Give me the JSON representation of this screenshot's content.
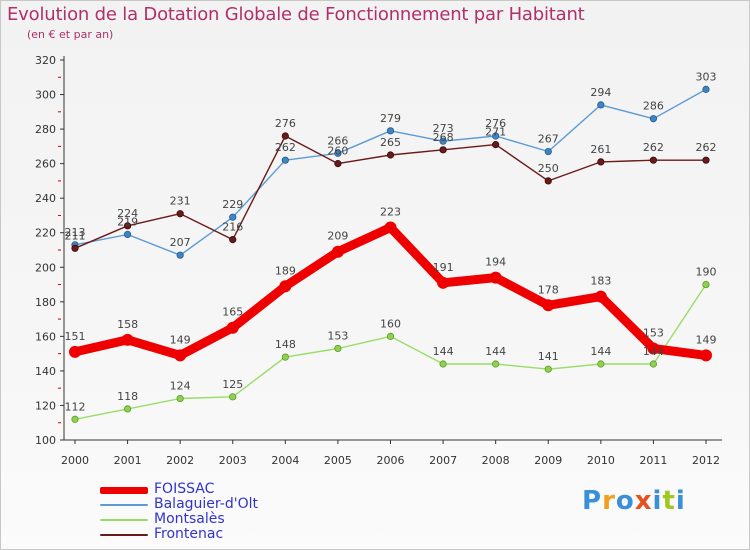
{
  "title": "Evolution de la Dotation Globale de Fonctionnement par Habitant",
  "subtitle": "(en € et par an)",
  "colors": {
    "title": "#b0306a",
    "legend_text": "#3333cc",
    "FOISSAC": "#ee0000",
    "Balaguier-d'Olt": "#5b9bd5",
    "Montsalès": "#99dd66",
    "Frontenac": "#6b1a1a"
  },
  "logo": {
    "letters": [
      "P",
      "r",
      "o",
      "x",
      "i",
      "t",
      "i"
    ],
    "colors": [
      "#3a8fd8",
      "#f0a020",
      "#3a8fd8",
      "#e85020",
      "#3a8fd8",
      "#a0c820",
      "#3a8fd8"
    ]
  },
  "chart_data": {
    "type": "line",
    "title": "Evolution de la Dotation Globale de Fonctionnement par Habitant",
    "subtitle": "(en € et par an)",
    "xlabel": "",
    "ylabel": "",
    "categories": [
      "2000",
      "2001",
      "2002",
      "2003",
      "2004",
      "2005",
      "2006",
      "2007",
      "2008",
      "2009",
      "2010",
      "2011",
      "2012"
    ],
    "ylim": [
      100,
      320
    ],
    "yticks": [
      100,
      120,
      140,
      160,
      180,
      200,
      220,
      240,
      260,
      280,
      300,
      320
    ],
    "grid": false,
    "legend_position": "bottom-left",
    "series": [
      {
        "name": "FOISSAC",
        "values": [
          151,
          158,
          149,
          165,
          189,
          209,
          223,
          191,
          194,
          178,
          183,
          153,
          149
        ]
      },
      {
        "name": "Balaguier-d'Olt",
        "values": [
          213,
          219,
          207,
          229,
          262,
          266,
          279,
          273,
          276,
          267,
          294,
          286,
          303
        ]
      },
      {
        "name": "Montsalès",
        "values": [
          112,
          118,
          124,
          125,
          148,
          153,
          160,
          144,
          144,
          141,
          144,
          144,
          190
        ]
      },
      {
        "name": "Frontenac",
        "values": [
          211,
          224,
          231,
          216,
          276,
          260,
          265,
          268,
          271,
          250,
          261,
          262,
          262
        ]
      }
    ],
    "labels": [
      {
        "series": "FOISSAC",
        "values": [
          "151",
          "158",
          "149",
          "165",
          "189",
          "209",
          "223",
          "191",
          "194",
          "178",
          "183",
          "153",
          "149"
        ]
      },
      {
        "series": "Balaguier-d'Olt",
        "values": [
          "213",
          "219",
          "207",
          "229",
          "262",
          "266",
          "279",
          "273",
          "276",
          "267",
          "294",
          "286",
          "303"
        ]
      },
      {
        "series": "Montsalès",
        "values": [
          "112",
          "118",
          "124",
          "125",
          "148",
          "153",
          "160",
          "144",
          "144",
          "141",
          "144",
          "144",
          "190"
        ]
      },
      {
        "series": "Frontenac",
        "values": [
          "211",
          "224",
          "231",
          "216",
          "276",
          "260",
          "265",
          "268",
          "271",
          "250",
          "261",
          "262",
          "262"
        ]
      }
    ]
  }
}
